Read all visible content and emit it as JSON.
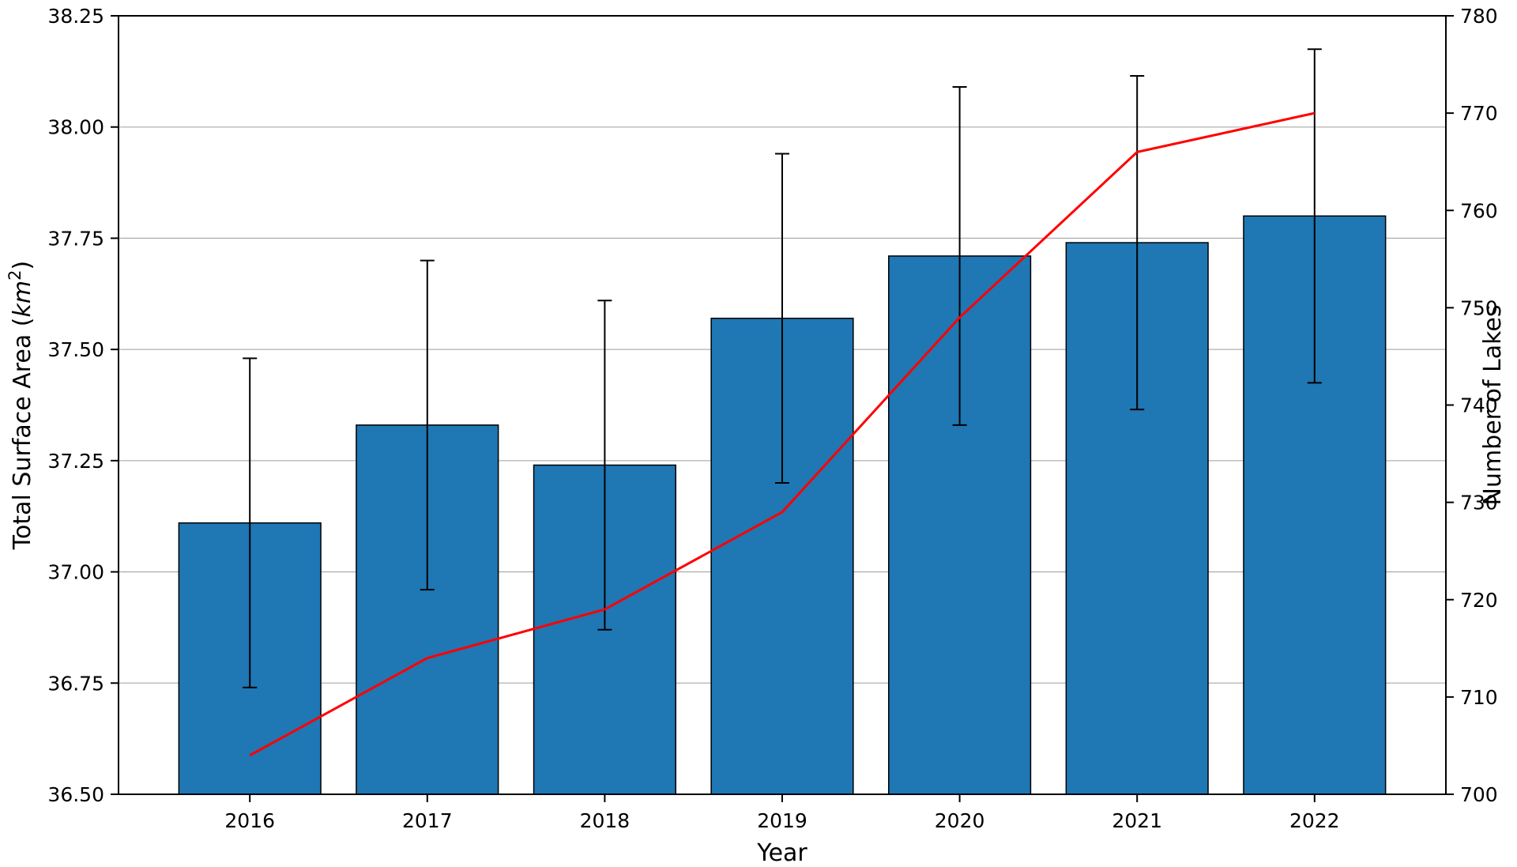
{
  "chart_data": {
    "type": "bar",
    "title": "",
    "xlabel": "Year",
    "ylabel_left": "Total Surface Area (km²)",
    "ylabel_left_parts": {
      "prefix": "Total Surface Area (",
      "italic": "km",
      "superscript": "2",
      "suffix": ")"
    },
    "ylabel_right": "Number of Lakes",
    "categories": [
      "2016",
      "2017",
      "2018",
      "2019",
      "2020",
      "2021",
      "2022"
    ],
    "series": [
      {
        "name": "Total Surface Area",
        "type": "bar",
        "axis": "left",
        "color": "#1f77b4",
        "edge_color": "#000000",
        "values": [
          37.11,
          37.33,
          37.24,
          37.57,
          37.71,
          37.74,
          37.8
        ],
        "errors": [
          0.37,
          0.37,
          0.37,
          0.37,
          0.38,
          0.375,
          0.375
        ]
      },
      {
        "name": "Number of Lakes",
        "type": "line",
        "axis": "right",
        "color": "#ff0000",
        "values": [
          704,
          714,
          719,
          729,
          749,
          766,
          770
        ]
      }
    ],
    "left_axis": {
      "min": 36.5,
      "max": 38.25,
      "ticks": [
        "36.50",
        "36.75",
        "37.00",
        "37.25",
        "37.50",
        "37.75",
        "38.00",
        "38.25"
      ]
    },
    "right_axis": {
      "min": 700,
      "max": 780,
      "ticks": [
        "700",
        "710",
        "720",
        "730",
        "740",
        "750",
        "760",
        "770",
        "780"
      ]
    },
    "grid": "horizontal",
    "grid_color": "#b0b0b0",
    "legend": "none",
    "background": "#ffffff",
    "error_bar_color": "#000000"
  }
}
